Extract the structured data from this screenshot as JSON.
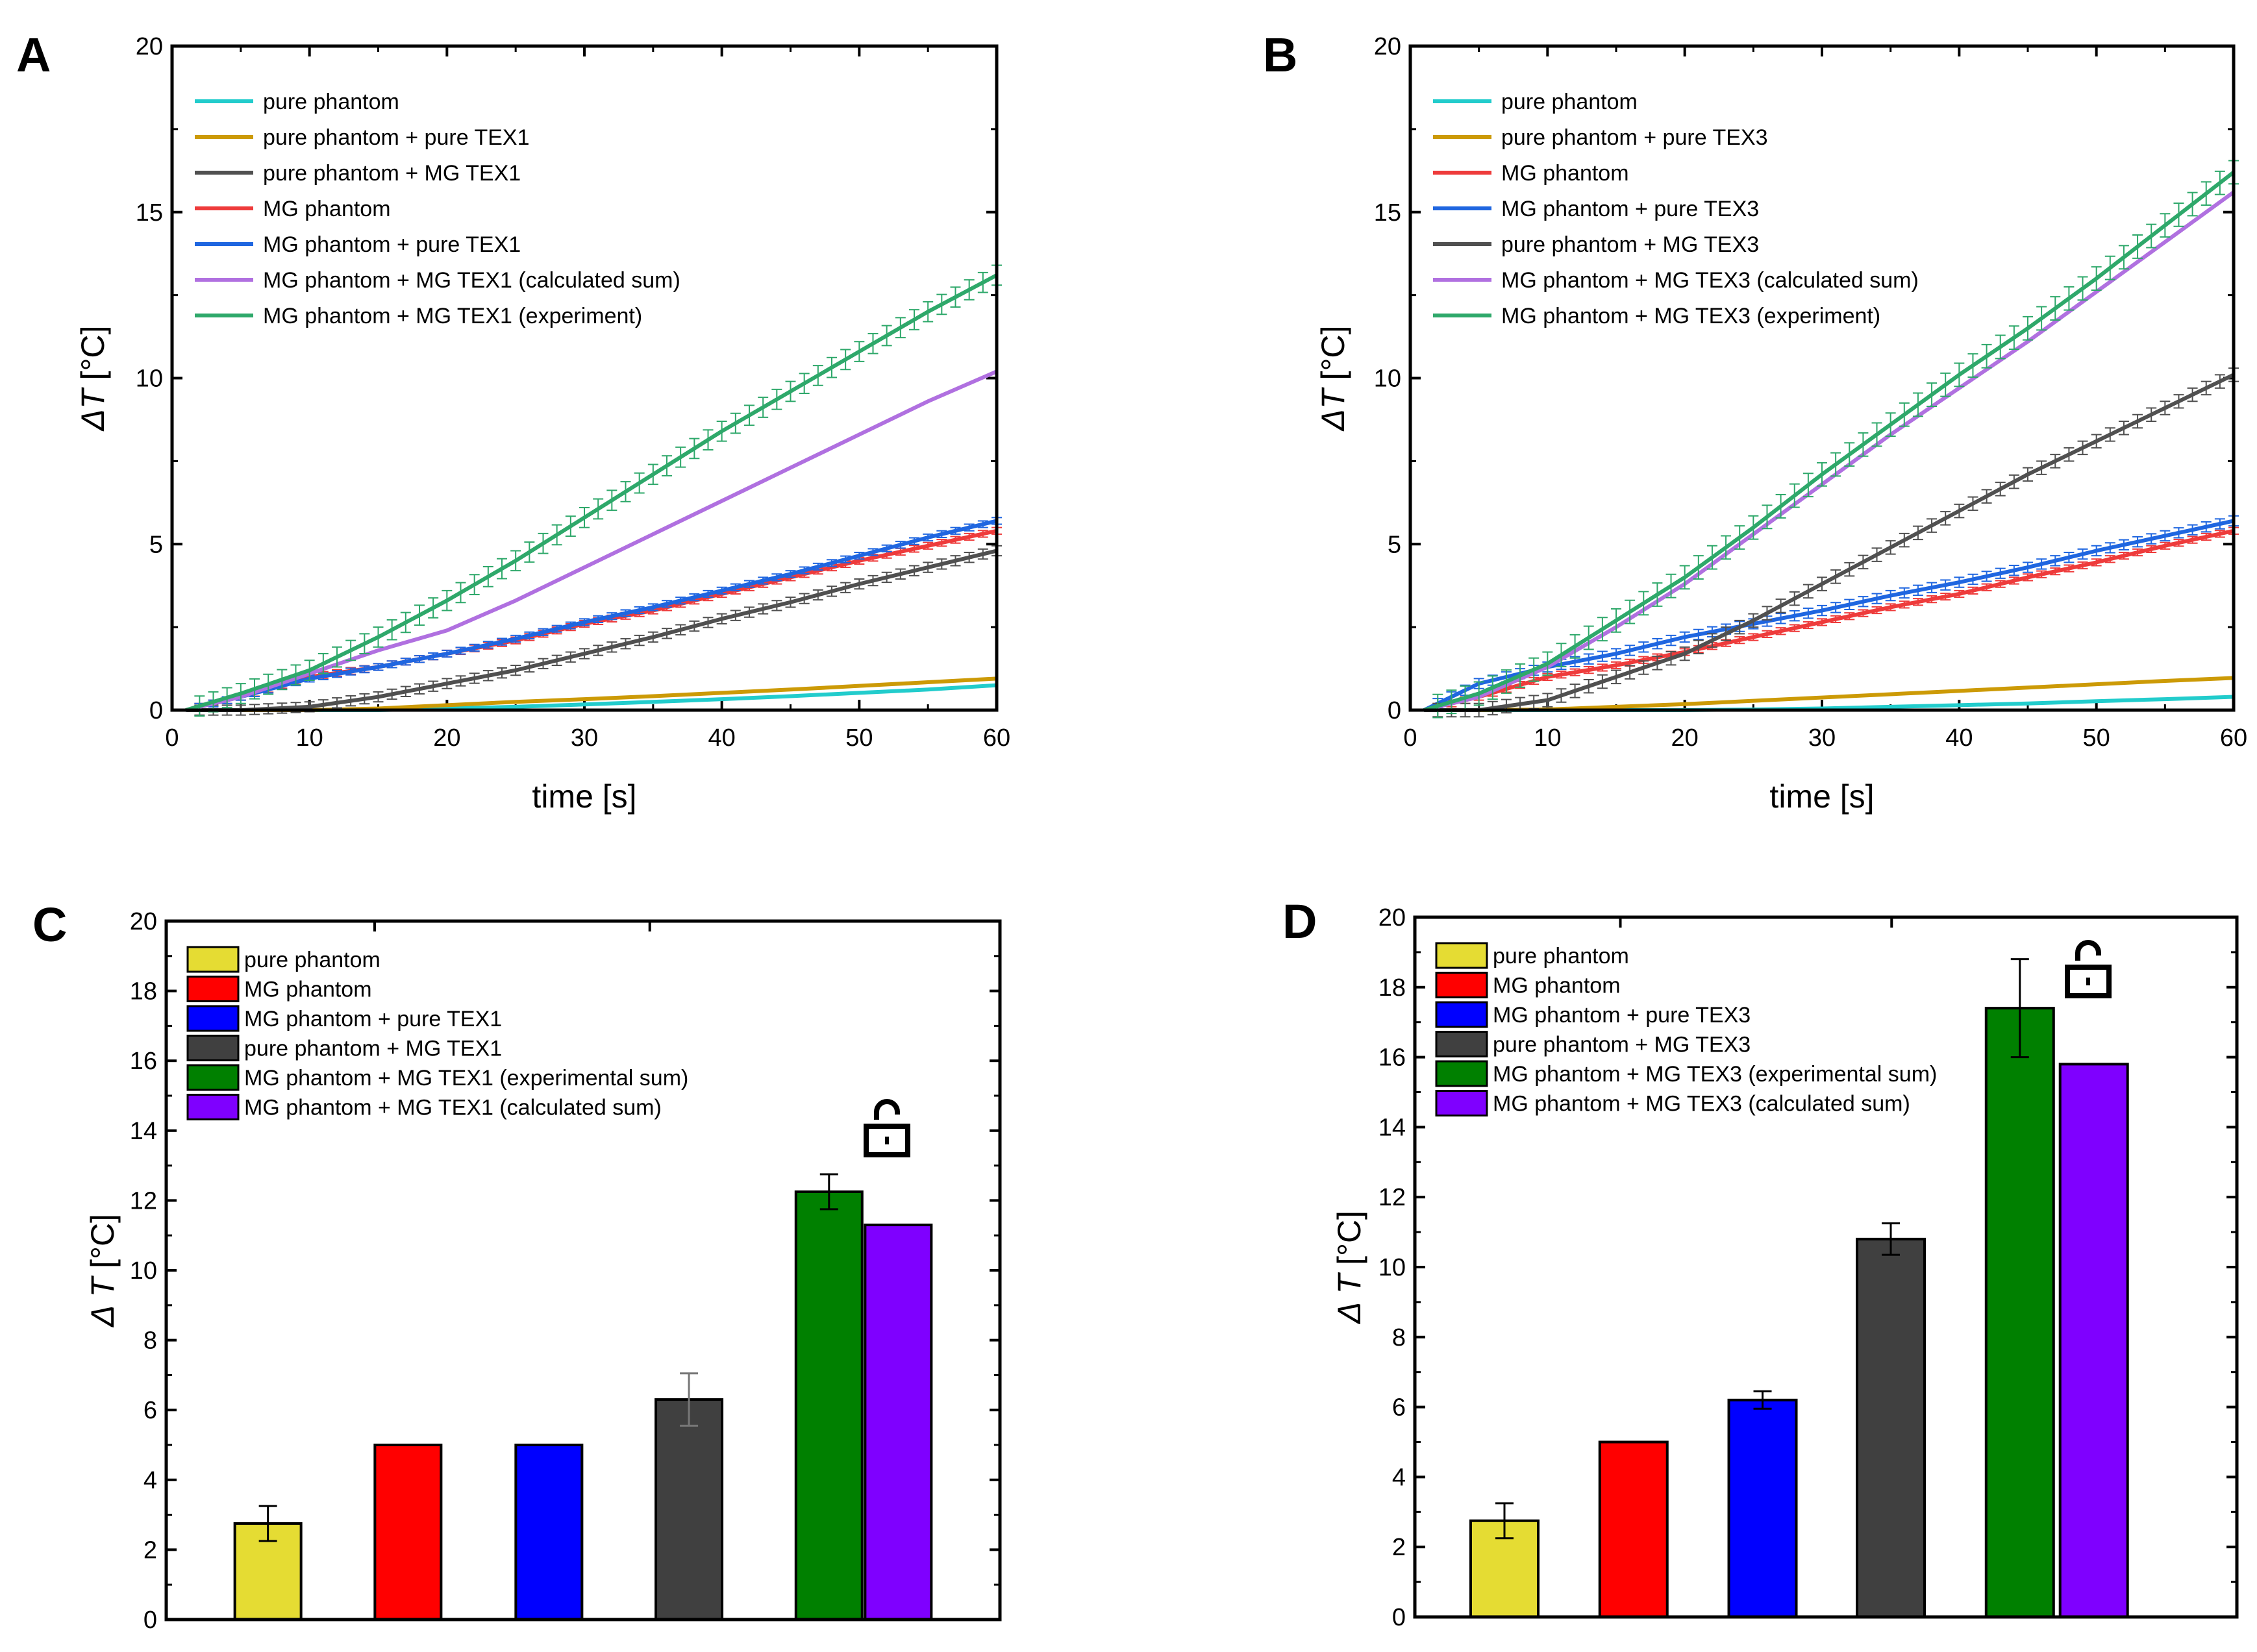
{
  "chart_data": [
    {
      "panel": "A",
      "type": "line",
      "xlabel": "time [s]",
      "ylabel_italic": "ΔT",
      "ylabel_unit": " [°C]",
      "xlim": [
        0,
        60
      ],
      "ylim": [
        0,
        20
      ],
      "xticks": [
        0,
        10,
        20,
        30,
        40,
        50,
        60
      ],
      "yticks": [
        0,
        5,
        10,
        15,
        20
      ],
      "legend_position": "top-left",
      "x": [
        1,
        5,
        10,
        15,
        20,
        25,
        30,
        35,
        40,
        45,
        50,
        55,
        60
      ],
      "series": [
        {
          "name": "pure phantom",
          "color": "#22CCCC",
          "error": 0,
          "values": [
            0,
            0,
            0,
            0,
            0.05,
            0.1,
            0.17,
            0.25,
            0.33,
            0.42,
            0.52,
            0.62,
            0.75
          ]
        },
        {
          "name": "pure phantom + pure TEX1",
          "color": "#CC9A06",
          "error": 0,
          "values": [
            0,
            0,
            0,
            0.05,
            0.15,
            0.25,
            0.33,
            0.42,
            0.52,
            0.62,
            0.73,
            0.84,
            0.95
          ]
        },
        {
          "name": "pure phantom + MG TEX1",
          "color": "#505050",
          "error": 0.15,
          "values": [
            0,
            0,
            0.1,
            0.4,
            0.8,
            1.2,
            1.7,
            2.2,
            2.75,
            3.25,
            3.8,
            4.3,
            4.8
          ]
        },
        {
          "name": "MG phantom",
          "color": "#EE3B3B",
          "error": 0.1,
          "values": [
            0,
            0.4,
            1.0,
            1.3,
            1.7,
            2.1,
            2.6,
            3.0,
            3.5,
            4.0,
            4.5,
            4.95,
            5.4
          ]
        },
        {
          "name": "MG phantom + pure TEX1",
          "color": "#1F66E0",
          "error": 0.1,
          "values": [
            0,
            0.4,
            0.95,
            1.3,
            1.7,
            2.15,
            2.65,
            3.1,
            3.6,
            4.1,
            4.65,
            5.2,
            5.7
          ]
        },
        {
          "name": "MG phantom + MG TEX1 (calculated sum)",
          "color": "#B070E0",
          "error": 0,
          "values": [
            0,
            0.4,
            1.1,
            1.8,
            2.4,
            3.3,
            4.3,
            5.3,
            6.3,
            7.3,
            8.3,
            9.3,
            10.2
          ]
        },
        {
          "name": "MG phantom + MG TEX1 (experiment)",
          "color": "#2EA86A",
          "error": 0.3,
          "values": [
            0,
            0.5,
            1.2,
            2.2,
            3.3,
            4.5,
            5.8,
            7.1,
            8.4,
            9.6,
            10.8,
            12.0,
            13.1
          ]
        }
      ]
    },
    {
      "panel": "B",
      "type": "line",
      "xlabel": "time [s]",
      "ylabel_italic": "ΔT",
      "ylabel_unit": " [°C]",
      "xlim": [
        0,
        60
      ],
      "ylim": [
        0,
        20
      ],
      "xticks": [
        0,
        10,
        20,
        30,
        40,
        50,
        60
      ],
      "yticks": [
        0,
        5,
        10,
        15,
        20
      ],
      "legend_position": "top-left",
      "x": [
        1,
        5,
        10,
        15,
        20,
        25,
        30,
        35,
        40,
        45,
        50,
        55,
        60
      ],
      "series": [
        {
          "name": "pure phantom",
          "color": "#22CCCC",
          "error": 0,
          "values": [
            0,
            0,
            0,
            0,
            0,
            0.02,
            0.05,
            0.1,
            0.15,
            0.2,
            0.27,
            0.33,
            0.4
          ]
        },
        {
          "name": "pure phantom + pure TEX3",
          "color": "#CC9A06",
          "error": 0,
          "values": [
            0,
            0,
            0.02,
            0.1,
            0.18,
            0.28,
            0.38,
            0.48,
            0.58,
            0.68,
            0.78,
            0.88,
            0.97
          ]
        },
        {
          "name": "MG phantom",
          "color": "#EE3B3B",
          "error": 0.1,
          "values": [
            0,
            0.4,
            1.0,
            1.35,
            1.75,
            2.2,
            2.65,
            3.1,
            3.5,
            4.0,
            4.45,
            4.95,
            5.4
          ]
        },
        {
          "name": "MG phantom + pure TEX3",
          "color": "#1F66E0",
          "error": 0.15,
          "values": [
            0,
            0.8,
            1.3,
            1.7,
            2.2,
            2.6,
            3.0,
            3.45,
            3.85,
            4.3,
            4.8,
            5.25,
            5.7
          ]
        },
        {
          "name": "pure phantom + MG TEX3",
          "color": "#505050",
          "error": 0.2,
          "values": [
            0,
            0,
            0.3,
            1.0,
            1.7,
            2.7,
            3.8,
            4.9,
            6.0,
            7.1,
            8.1,
            9.1,
            10.1
          ]
        },
        {
          "name": "MG phantom + MG TEX3 (calculated sum)",
          "color": "#B070E0",
          "error": 0,
          "values": [
            0,
            0.4,
            1.3,
            2.5,
            3.8,
            5.3,
            6.8,
            8.3,
            9.7,
            11.1,
            12.6,
            14.1,
            15.6
          ]
        },
        {
          "name": "MG phantom + MG TEX3 (experiment)",
          "color": "#2EA86A",
          "error": 0.35,
          "values": [
            0,
            0.5,
            1.4,
            2.7,
            4.0,
            5.5,
            7.1,
            8.6,
            10.1,
            11.5,
            13.0,
            14.6,
            16.2
          ]
        }
      ]
    },
    {
      "panel": "C",
      "type": "bar",
      "ylabel_italic": "Δ T",
      "ylabel_unit": " [°C]",
      "ylim": [
        0,
        20
      ],
      "yticks": [
        0,
        2,
        4,
        6,
        8,
        10,
        12,
        14,
        16,
        18,
        20
      ],
      "legend_position": "top-left",
      "icon": "unlocked-padlock",
      "categories": [
        "pure phantom",
        "MG phantom",
        "MG phantom + pure TEX1",
        "pure phantom + MG TEX1",
        "MG phantom + MG TEX1 (experimental sum)",
        "MG phantom + MG TEX1 (calculated sum)"
      ],
      "values": [
        2.75,
        5.0,
        5.0,
        6.3,
        12.25,
        11.3
      ],
      "errors": [
        0.5,
        0,
        0,
        0.75,
        0.5,
        0
      ],
      "colors": [
        "#E5DC33",
        "#FF0000",
        "#0000FF",
        "#404040",
        "#008000",
        "#7F00FF"
      ]
    },
    {
      "panel": "D",
      "type": "bar",
      "ylabel_italic": "Δ T",
      "ylabel_unit": " [°C]",
      "ylim": [
        0,
        20
      ],
      "yticks": [
        0,
        2,
        4,
        6,
        8,
        10,
        12,
        14,
        16,
        18,
        20
      ],
      "legend_position": "top-left",
      "icon": "unlocked-padlock",
      "categories": [
        "pure phantom",
        "MG phantom",
        "MG phantom + pure TEX3",
        "pure phantom + MG TEX3",
        "MG phantom + MG TEX3 (experimental sum)",
        "MG phantom + MG TEX3 (calculated sum)"
      ],
      "values": [
        2.75,
        5.0,
        6.2,
        10.8,
        17.4,
        15.8
      ],
      "errors": [
        0.5,
        0,
        0.25,
        0.45,
        1.4,
        0
      ],
      "colors": [
        "#E5DC33",
        "#FF0000",
        "#0000FF",
        "#404040",
        "#008000",
        "#7F00FF"
      ]
    }
  ]
}
